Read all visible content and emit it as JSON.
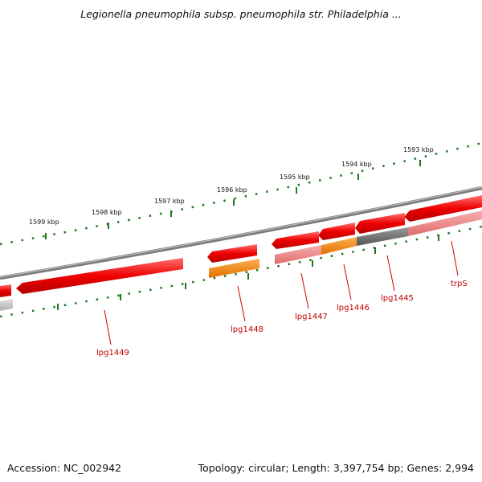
{
  "header": {
    "title": "Legionella pneumophila subsp. pneumophila str. Philadelphia ..."
  },
  "footer": {
    "accession": "Accession: NC_002942",
    "summary": "Topology: circular; Length: 3,397,754 bp; Genes: 2,994"
  },
  "map": {
    "kbp_labels": [
      "1593 kbp",
      "1594 kbp",
      "1595 kbp",
      "1596 kbp",
      "1597 kbp",
      "1598 kbp",
      "1599 kbp"
    ],
    "gene_labels": [
      "trpS",
      "lpg1445",
      "lpg1446",
      "lpg1447",
      "lpg1448",
      "lpg1449"
    ]
  },
  "colors": {
    "gene_primary": "#e00000",
    "gene_light": "#f08080",
    "gene_orange": "#ff8c00",
    "gene_grey": "#666666",
    "backbone": "#808080",
    "ruler": "#1a7a1a",
    "label": "#c00000"
  }
}
